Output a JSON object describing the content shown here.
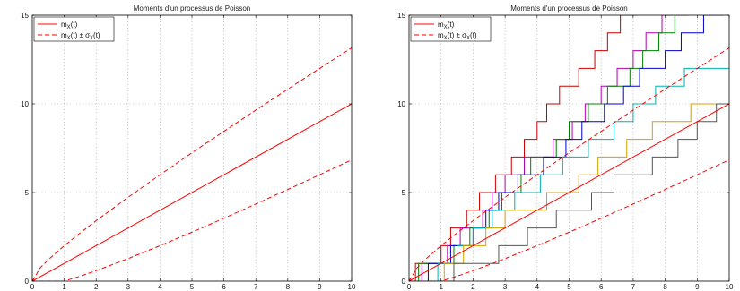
{
  "chart_data": [
    {
      "type": "line",
      "title": "Moments d'un processus de Poisson",
      "xlim": [
        0,
        10
      ],
      "ylim": [
        0,
        15
      ],
      "xticks": [
        "0",
        "1",
        "2",
        "3",
        "4",
        "5",
        "6",
        "7",
        "8",
        "9",
        "10"
      ],
      "yticks": [
        "0",
        "5",
        "10",
        "15"
      ],
      "grid": true,
      "legend": {
        "placement": "top-left",
        "entries": [
          {
            "label_main": "m",
            "label_sub": "X",
            "label_rest": "(t)",
            "style": "solid",
            "color": "#ff0000"
          },
          {
            "label_main": "m",
            "label_sub": "X",
            "label_rest": "(t) ± σ",
            "label_sub2": "X",
            "label_rest2": "(t)",
            "style": "dashed",
            "color": "#ff0000"
          }
        ]
      },
      "series": [
        {
          "style": "solid",
          "color": "#ff0000",
          "x": [
            0,
            10
          ],
          "y": [
            0,
            10
          ]
        },
        {
          "style": "dashed",
          "color": "#ff0000",
          "x": [
            0,
            0.25,
            0.5,
            1,
            1.5,
            2,
            3,
            4,
            5,
            6,
            7,
            8,
            9,
            10
          ],
          "y": [
            0,
            0.75,
            1.21,
            2,
            2.72,
            3.41,
            4.73,
            6,
            7.24,
            8.45,
            9.65,
            10.83,
            12,
            13.16
          ]
        },
        {
          "style": "dashed",
          "color": "#ff0000",
          "x": [
            0,
            1,
            1.5,
            2,
            3,
            4,
            5,
            6,
            7,
            8,
            9,
            10
          ],
          "y": [
            0,
            0,
            0.28,
            0.59,
            1.27,
            2,
            2.76,
            3.55,
            4.35,
            5.17,
            6,
            6.84
          ]
        }
      ]
    },
    {
      "type": "line",
      "title": "Moments d'un processus de Poisson",
      "xlim": [
        0,
        10
      ],
      "ylim": [
        0,
        15
      ],
      "xticks": [
        "0",
        "1",
        "2",
        "3",
        "4",
        "5",
        "6",
        "7",
        "8",
        "9",
        "10"
      ],
      "yticks": [
        "0",
        "5",
        "10",
        "15"
      ],
      "grid": true,
      "legend": {
        "placement": "top-left",
        "entries": [
          {
            "label_main": "m",
            "label_sub": "X",
            "label_rest": "(t)",
            "style": "solid",
            "color": "#ff0000"
          },
          {
            "label_main": "m",
            "label_sub": "X",
            "label_rest": "(t) ± σ",
            "label_sub2": "X",
            "label_rest2": "(t)",
            "style": "dashed",
            "color": "#ff0000"
          }
        ]
      },
      "series": [
        {
          "style": "solid",
          "color": "#ff0000",
          "x": [
            0,
            10
          ],
          "y": [
            0,
            10
          ]
        },
        {
          "style": "dashed",
          "color": "#ff0000",
          "x": [
            0,
            0.25,
            0.5,
            1,
            1.5,
            2,
            3,
            4,
            5,
            6,
            7,
            8,
            9,
            10
          ],
          "y": [
            0,
            0.75,
            1.21,
            2,
            2.72,
            3.41,
            4.73,
            6,
            7.24,
            8.45,
            9.65,
            10.83,
            12,
            13.16
          ]
        },
        {
          "style": "dashed",
          "color": "#ff0000",
          "x": [
            0,
            1,
            1.5,
            2,
            3,
            4,
            5,
            6,
            7,
            8,
            9,
            10
          ],
          "y": [
            0,
            0,
            0.28,
            0.59,
            1.27,
            2,
            2.76,
            3.55,
            4.35,
            5.17,
            6,
            6.84
          ]
        }
      ],
      "step_series": [
        {
          "color": "#cc0000",
          "jumps": [
            0.2,
            1.0,
            1.3,
            1.8,
            2.2,
            2.7,
            3.2,
            3.6,
            4.0,
            4.3,
            4.7,
            5.3,
            5.8,
            6.2,
            6.6,
            7.1,
            7.6,
            8.2,
            8.6,
            9.4
          ]
        },
        {
          "color": "#b000b0",
          "jumps": [
            0.4,
            1.2,
            1.6,
            2.3,
            2.6,
            3.0,
            3.6,
            4.5,
            5.1,
            5.5,
            6.0,
            6.5,
            7.0,
            7.4,
            7.9,
            8.2
          ]
        },
        {
          "color": "#008000",
          "jumps": [
            0.3,
            1.4,
            1.9,
            2.5,
            2.9,
            3.5,
            3.8,
            4.6,
            5.0,
            5.6,
            6.2,
            6.9,
            7.3,
            7.8,
            8.3,
            8.7,
            9.6
          ]
        },
        {
          "color": "#0000cc",
          "jumps": [
            0.6,
            1.3,
            2.0,
            2.4,
            2.8,
            3.4,
            4.2,
            4.9,
            5.4,
            6.1,
            6.7,
            7.2,
            8.0,
            8.5,
            9.2,
            9.8
          ]
        },
        {
          "color": "#00b0b0",
          "jumps": [
            0.9,
            1.5,
            2.0,
            2.6,
            3.3,
            4.1,
            4.8,
            5.6,
            6.4,
            7.0,
            7.7,
            8.6
          ]
        },
        {
          "color": "#d4a000",
          "jumps": [
            1.1,
            1.7,
            2.4,
            3.0,
            4.3,
            5.3,
            5.9,
            6.8,
            7.6,
            8.8
          ]
        },
        {
          "color": "#555555",
          "jumps": [
            1.4,
            2.8,
            3.7,
            4.6,
            5.7,
            6.4,
            7.6,
            8.4,
            9.0,
            9.6
          ]
        }
      ]
    }
  ]
}
